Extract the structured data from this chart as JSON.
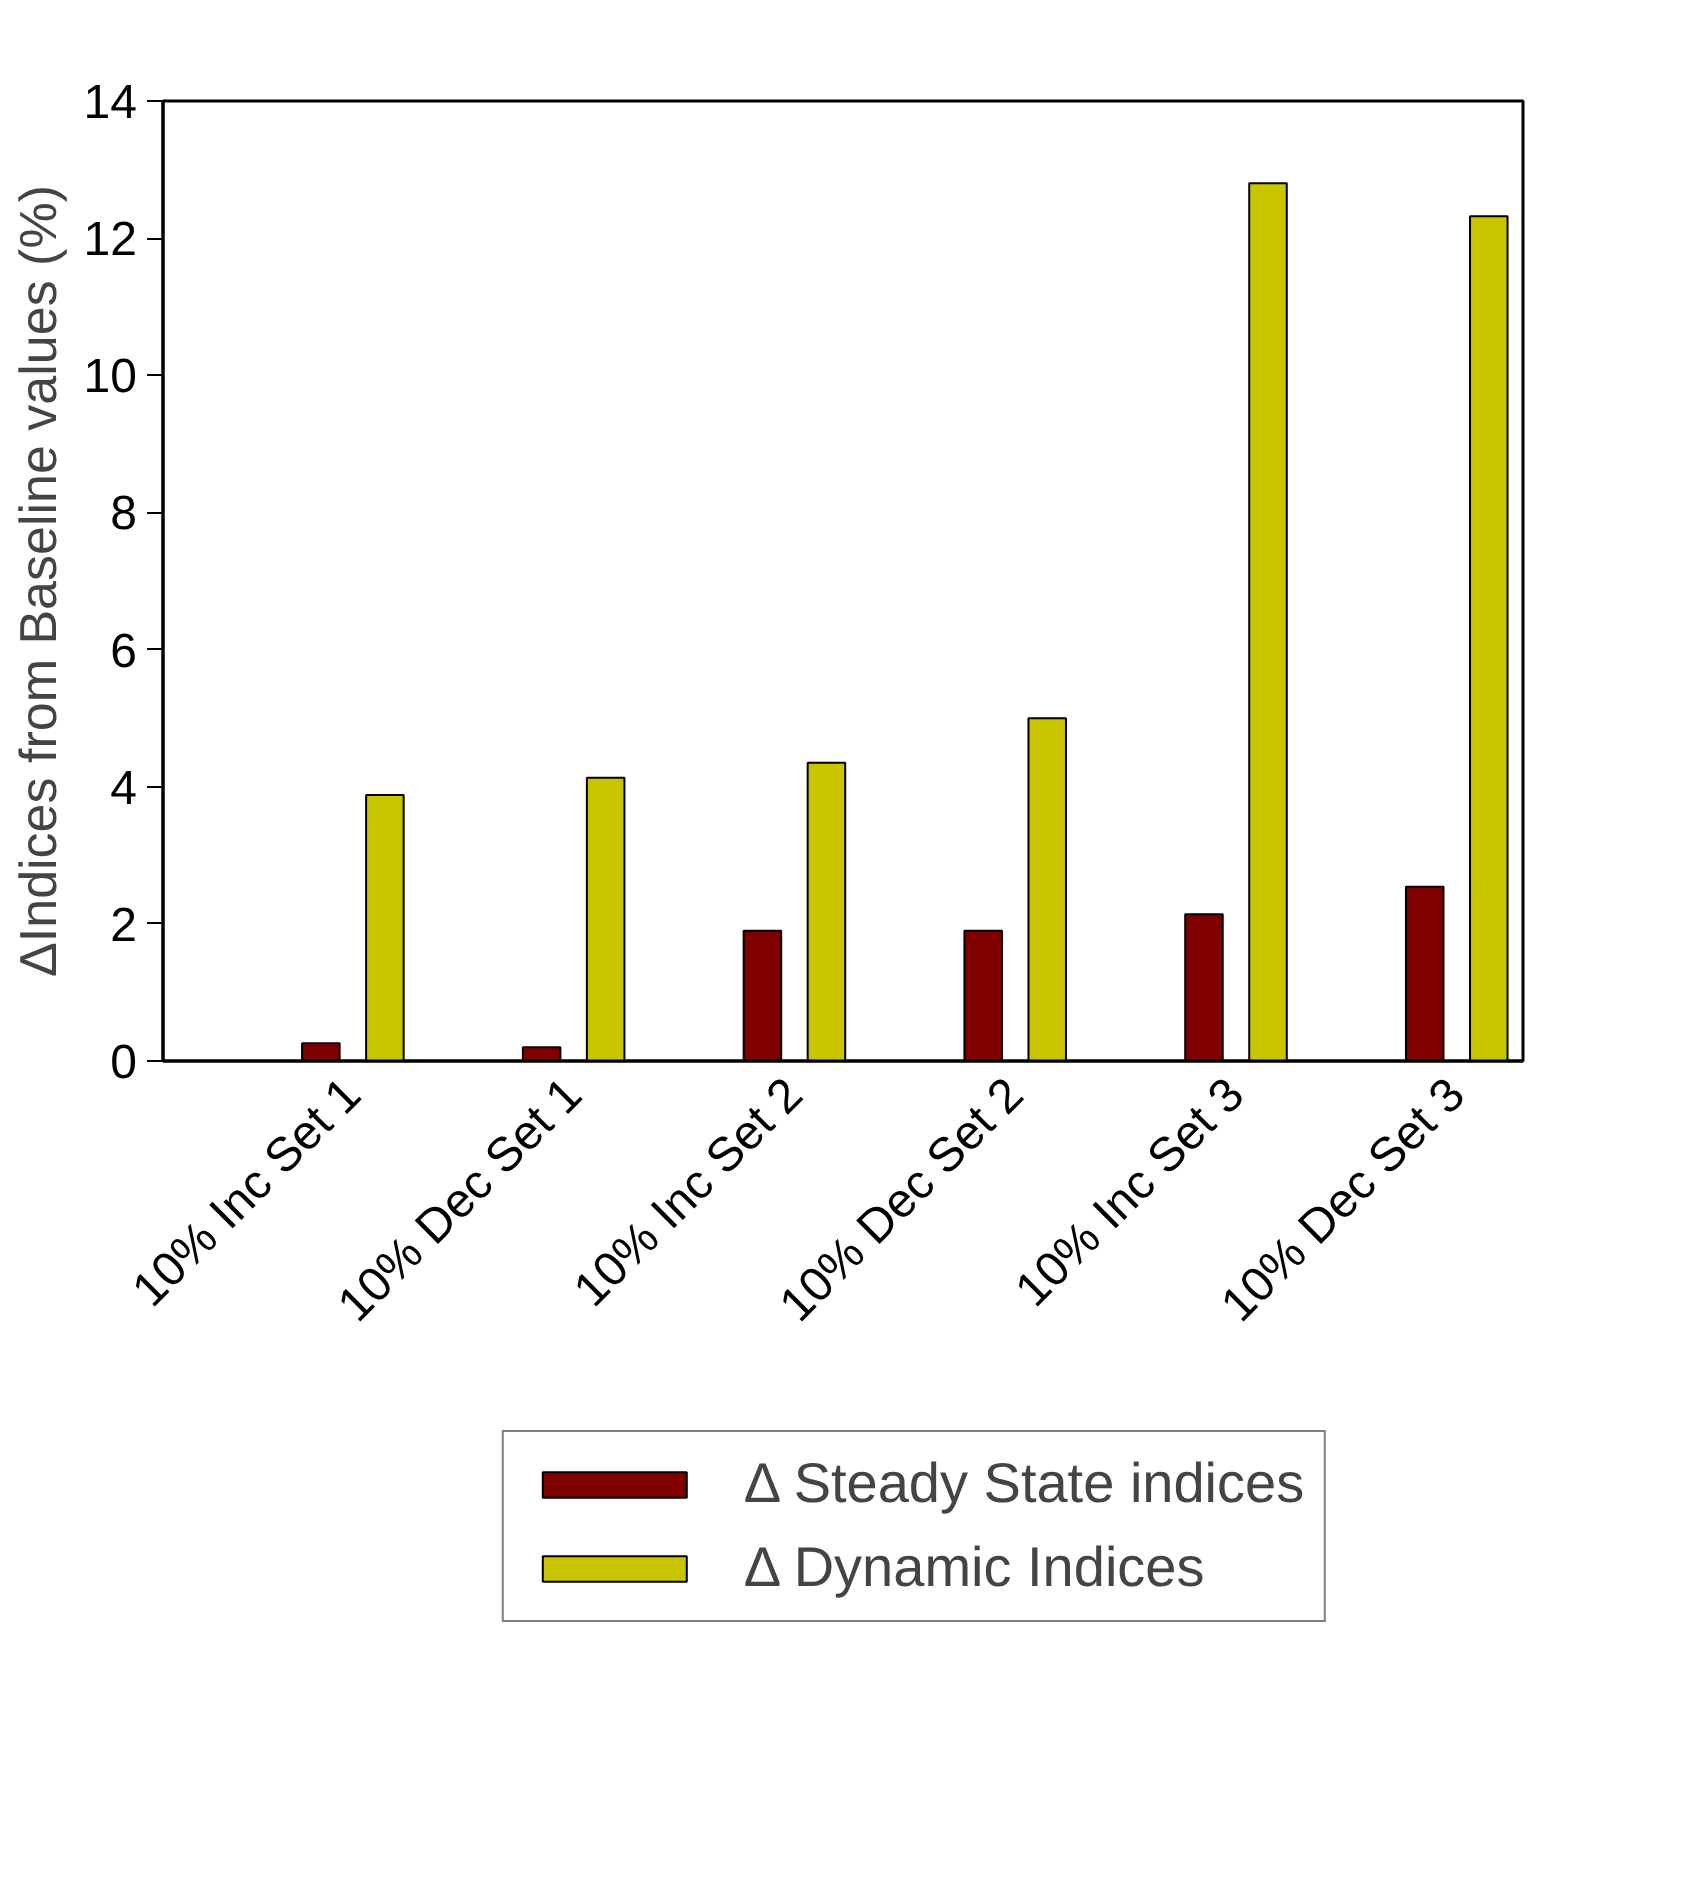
{
  "chart_data": {
    "type": "bar",
    "ylabel": "ΔIndices from Baseline values (%)",
    "categories": [
      "10% Inc Set 1",
      "10% Dec Set 1",
      "10% Inc Set 2",
      "10% Dec Set 2",
      "10% Inc Set 3",
      "10% Dec Set 3"
    ],
    "series": [
      {
        "name": "Δ Steady State indices",
        "color": "#800000",
        "values": [
          0.26,
          0.2,
          1.9,
          1.9,
          2.14,
          2.54
        ]
      },
      {
        "name": "Δ Dynamic Indices",
        "color": "#c8c400",
        "values": [
          3.88,
          4.13,
          4.35,
          5.0,
          12.8,
          12.32
        ]
      }
    ],
    "ylim": [
      0,
      14
    ],
    "yticks": [
      0,
      2,
      4,
      6,
      8,
      10,
      12,
      14
    ],
    "grid": false,
    "legend": "bottom"
  }
}
